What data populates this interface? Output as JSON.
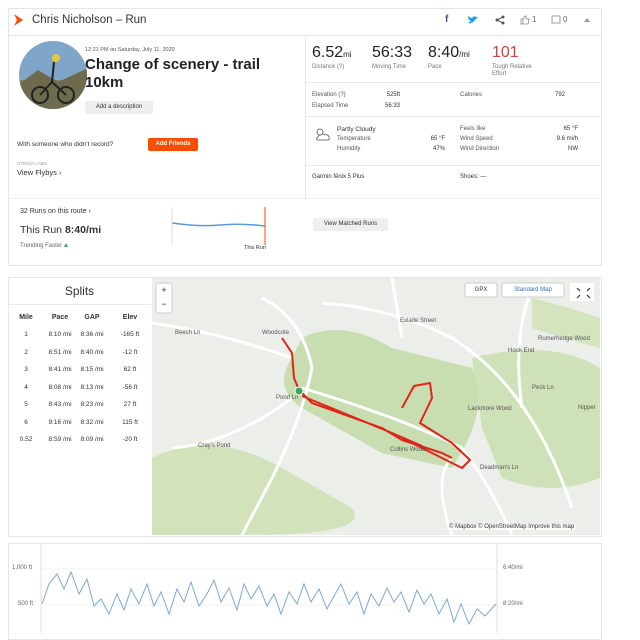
{
  "header": {
    "title": "Chris Nicholson – Run",
    "kudos": "1",
    "comments": "0"
  },
  "activity": {
    "datetime": "12:21 PM on Saturday, July 11, 2020",
    "name": "Change of scenery - trail 10km",
    "add_description": "Add a description",
    "with_someone": "With someone who didn't record?",
    "add_friends": "Add Friends",
    "labs": "STRAVA LABS",
    "flybys": "View Flybys ›"
  },
  "stats": {
    "primary": [
      {
        "value": "6.52",
        "unit": "mi",
        "label": "Distance (?)"
      },
      {
        "value": "56:33",
        "unit": "",
        "label": "Moving Time"
      },
      {
        "value": "8:40",
        "unit": "/mi",
        "label": "Pace"
      },
      {
        "value": "101",
        "unit": "",
        "label": "Tough Relative Effort"
      }
    ],
    "secondary": [
      {
        "label": "Elevation (?)",
        "value": "525ft"
      },
      {
        "label": "Calories",
        "value": "792"
      },
      {
        "label": "Elapsed Time",
        "value": "56:33"
      }
    ],
    "weather": {
      "condition": "Partly Cloudy",
      "left": [
        {
          "label": "Temperature",
          "value": "65 °F"
        },
        {
          "label": "Humidity",
          "value": "47%"
        }
      ],
      "right": [
        {
          "label": "Feels like",
          "value": "65 °F"
        },
        {
          "label": "Wind Speed",
          "value": "9.6 mi/h"
        },
        {
          "label": "Wind Direction",
          "value": "NW"
        }
      ]
    },
    "device": "Garmin fēnix 5 Plus",
    "shoes": "Shoes: —"
  },
  "route": {
    "runs": "32 Runs on this route ›",
    "this_run_label": "This Run",
    "this_run_pace": "8:40/mi",
    "trend": "Trending Faster",
    "chart_label": "This Run",
    "matched": "View Matched Runs"
  },
  "splits": {
    "title": "Splits",
    "headers": [
      "Mile",
      "Pace",
      "GAP",
      "Elev"
    ],
    "rows": [
      [
        "1",
        "8:10 /mi",
        "8:36 /mi",
        "-165 ft"
      ],
      [
        "2",
        "8:51 /mi",
        "8:40 /mi",
        "-12 ft"
      ],
      [
        "3",
        "8:41 /mi",
        "8:15 /mi",
        "62 ft"
      ],
      [
        "4",
        "8:08 /mi",
        "8:13 /mi",
        "-56 ft"
      ],
      [
        "5",
        "8:43 /mi",
        "8:23 /mi",
        "27 ft"
      ],
      [
        "6",
        "9:16 /mi",
        "8:32 /mi",
        "115 ft"
      ],
      [
        "0.52",
        "8:59 /mi",
        "8:09 /mi",
        "-20 ft"
      ]
    ]
  },
  "map": {
    "zoom_in": "+",
    "zoom_out": "−",
    "gpx": "GPX",
    "style": "Standard Map",
    "attribution": "© Mapbox © OpenStreetMap Improve this map",
    "places": [
      "Woodcote",
      "Exlade Street",
      "Hook End",
      "Rumerhedge Wood",
      "Lackmore Wood",
      "Nipper",
      "Cray's Pond",
      "Collins Wood",
      "Beech Ln",
      "Pond Ln",
      "Peck Ln",
      "Deadman's Ln"
    ]
  },
  "profile": {
    "left_axis": [
      "1,000 ft",
      "500 ft"
    ],
    "right_axis": [
      "6:40/mi",
      "8:20/mi"
    ]
  }
}
